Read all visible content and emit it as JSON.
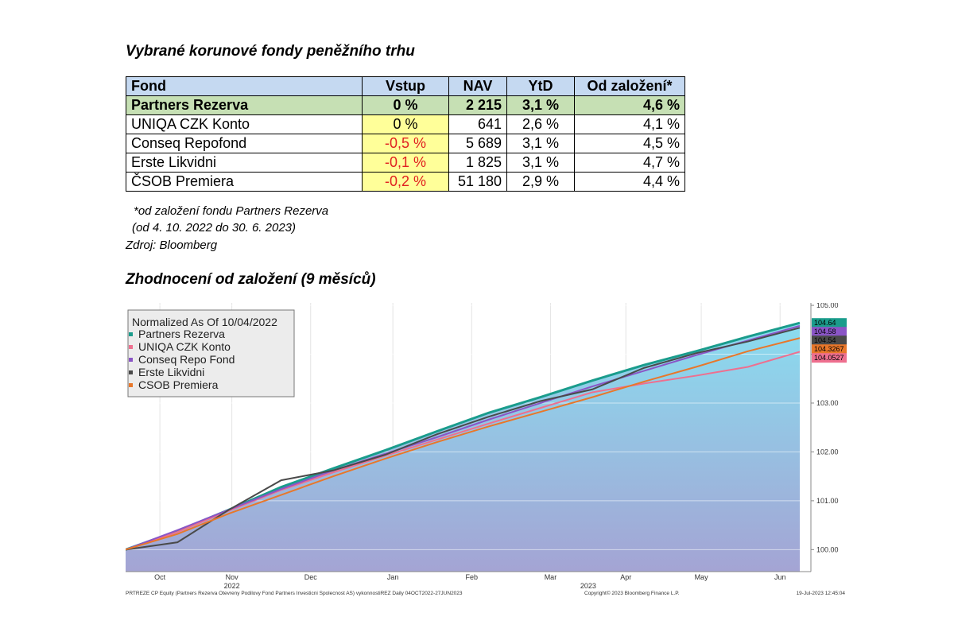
{
  "heading_table": "Vybrané korunové fondy peněžního trhu",
  "table": {
    "headers": [
      "Fond",
      "Vstup",
      "NAV",
      "YtD",
      "Od založení*"
    ],
    "rows": [
      {
        "fund": "Partners Rezerva",
        "vstup": "0 %",
        "nav": "2 215",
        "ytd": "3,1 %",
        "since": "4,6 %"
      },
      {
        "fund": "UNIQA CZK Konto",
        "vstup": "0 %",
        "nav": "641",
        "ytd": "2,6 %",
        "since": "4,1 %"
      },
      {
        "fund": "Conseq Repofond",
        "vstup": "-0,5 %",
        "nav": "5 689",
        "ytd": "3,1 %",
        "since": "4,5 %"
      },
      {
        "fund": "Erste Likvidni",
        "vstup": "-0,1 %",
        "nav": "1 825",
        "ytd": "3,1 %",
        "since": "4,7 %"
      },
      {
        "fund": "ČSOB Premiera",
        "vstup": "-0,2 %",
        "nav": "51 180",
        "ytd": "2,9 %",
        "since": "4,4 %"
      }
    ],
    "footnote1": "*od založení fondu Partners Rezerva",
    "footnote2": "(od 4. 10. 2022 do 30. 6. 2023)",
    "source": "Zdroj: Bloomberg"
  },
  "heading_chart": "Zhodnocení od založení (9 měsíců)",
  "colors": {
    "partners": "#1a9c8c",
    "uniqa": "#ee6f8f",
    "conseq": "#8a55c6",
    "erste": "#4a4a4a",
    "csob": "#e8772a",
    "area_top": "#8adcef",
    "area_bottom": "#a4a4d4",
    "negative": "#e02020",
    "header_bg": "#c5d9f1",
    "highlight_bg": "#c6e0b4",
    "vstup_bg": "#ffff99"
  },
  "chart_data": {
    "type": "line",
    "legend_title": "Normalized As Of 10/04/2022",
    "legend_position": "top-left",
    "grid": true,
    "ylim": [
      99.55,
      105.05
    ],
    "yticks": [
      "100.00",
      "101.00",
      "102.00",
      "103.00",
      "104.00",
      "105.00"
    ],
    "x_month_labels": [
      "Oct",
      "Nov",
      "Dec",
      "Jan",
      "Feb",
      "Mar",
      "Apr",
      "May",
      "Jun"
    ],
    "x_month_positions": [
      0.05,
      0.155,
      0.27,
      0.39,
      0.505,
      0.62,
      0.73,
      0.84,
      0.955
    ],
    "x_year_labels": [
      {
        "label": "2022",
        "pos": 0.155
      },
      {
        "label": "2023",
        "pos": 0.675
      }
    ],
    "x": [
      "2022-10-04",
      "2022-10-25",
      "2022-11-15",
      "2022-12-06",
      "2022-12-27",
      "2023-01-17",
      "2023-02-07",
      "2023-02-28",
      "2023-03-21",
      "2023-04-11",
      "2023-05-02",
      "2023-05-23",
      "2023-06-13",
      "2023-06-27"
    ],
    "series": [
      {
        "name": "Partners Rezerva",
        "color_key": "partners",
        "label": "104.64",
        "area": true,
        "values": [
          100.0,
          100.38,
          100.82,
          101.28,
          101.66,
          102.03,
          102.42,
          102.8,
          103.12,
          103.46,
          103.78,
          104.06,
          104.36,
          104.64
        ]
      },
      {
        "name": "UNIQA CZK Konto",
        "color_key": "uniqa",
        "label": "104.0527",
        "values": [
          100.0,
          100.36,
          100.8,
          101.22,
          101.58,
          101.92,
          102.25,
          102.58,
          102.9,
          103.22,
          103.4,
          103.56,
          103.74,
          104.05
        ]
      },
      {
        "name": "Conseq Repo Fond",
        "color_key": "conseq",
        "label": "104.58",
        "values": [
          100.0,
          100.4,
          100.82,
          101.24,
          101.62,
          101.96,
          102.3,
          102.66,
          103.0,
          103.34,
          103.66,
          103.98,
          104.28,
          104.58
        ]
      },
      {
        "name": "Erste Likvidni",
        "color_key": "erste",
        "label": "104.54",
        "values": [
          100.0,
          100.15,
          100.82,
          101.42,
          101.62,
          101.94,
          102.36,
          102.72,
          103.04,
          103.28,
          103.72,
          104.02,
          104.26,
          104.54
        ]
      },
      {
        "name": "CSOB Premiera",
        "color_key": "csob",
        "label": "104.3267",
        "values": [
          100.0,
          100.32,
          100.74,
          101.12,
          101.5,
          101.86,
          102.2,
          102.52,
          102.82,
          103.12,
          103.44,
          103.74,
          104.06,
          104.33
        ]
      }
    ],
    "footer_left": "PRTREZE CP Equity (Partners Rezerva Otevreny Podilovy Fond Partners Investicni Spolecnost AS) vykonnostiREZ  Daily 04OCT2022-27JUN2023",
    "footer_center": "Copyright© 2023 Bloomberg Finance L.P.",
    "footer_right": "19-Jul-2023 12:45:04"
  }
}
